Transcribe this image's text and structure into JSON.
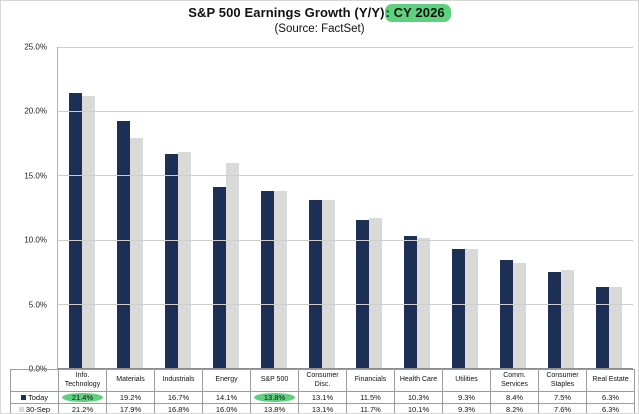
{
  "title": {
    "plain": "S&P 500 Earnings Growth (Y/Y)",
    "highlighted": ": CY 2026"
  },
  "subtitle": "(Source: FactSet)",
  "colors": {
    "today_bar": "#1e2f55",
    "sep30_bar": "#d9d9d9",
    "highlight_green": "#5dd17e",
    "gridline": "#cfcfcf",
    "table_border": "#9c9c9c"
  },
  "chart_data": {
    "type": "bar",
    "title": "S&P 500 Earnings Growth (Y/Y): CY 2026",
    "subtitle": "(Source: FactSet)",
    "categories": [
      "Info. Technology",
      "Materials",
      "Industrials",
      "Energy",
      "S&P 500",
      "Consumer Disc.",
      "Financials",
      "Health Care",
      "Utilities",
      "Comm. Services",
      "Consumer Staples",
      "Real Estate"
    ],
    "series": [
      {
        "name": "Today",
        "color": "#1e2f55",
        "values": [
          21.4,
          19.2,
          16.7,
          14.1,
          13.8,
          13.1,
          11.5,
          10.3,
          9.3,
          8.4,
          7.5,
          6.3
        ],
        "highlighted_value_indices": [
          0,
          4
        ]
      },
      {
        "name": "30-Sep",
        "color": "#d9d9d9",
        "values": [
          21.2,
          17.9,
          16.8,
          16.0,
          13.8,
          13.1,
          11.7,
          10.1,
          9.3,
          8.2,
          7.6,
          6.3
        ],
        "highlighted_value_indices": []
      }
    ],
    "xlabel": "",
    "ylabel": "",
    "ylim": [
      0,
      25
    ],
    "ytick_step": 5,
    "ytick_labels": [
      "0.0%",
      "5.0%",
      "10.0%",
      "15.0%",
      "20.0%",
      "25.0%"
    ],
    "value_suffix": "%",
    "grid": true,
    "legend_position": "table-left-column"
  }
}
